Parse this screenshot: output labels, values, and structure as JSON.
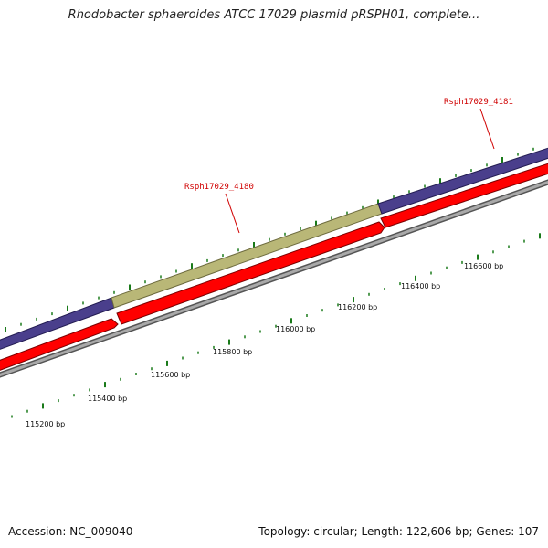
{
  "title": "Rhodobacter sphaeroides ATCC 17029 plasmid pRSPH01, complete...",
  "footer": {
    "accession": "Accession: NC_009040",
    "summary": "Topology: circular; Length: 122,606 bp; Genes: 107"
  },
  "gene_labels": [
    "Rsph17029_4180",
    "Rsph17029_4181"
  ],
  "ticks": [
    "115200 bp",
    "115400 bp",
    "115600 bp",
    "115800 bp",
    "116000 bp",
    "116200 bp",
    "116400 bp",
    "116600 bp"
  ],
  "colors": {
    "blue_feature": "#4a3f8c",
    "olive_feature": "#b9b777",
    "red_feature": "#ff0000",
    "backbone": "#8a8a8a",
    "tick": "#1a7a1a",
    "label": "#d00000"
  }
}
